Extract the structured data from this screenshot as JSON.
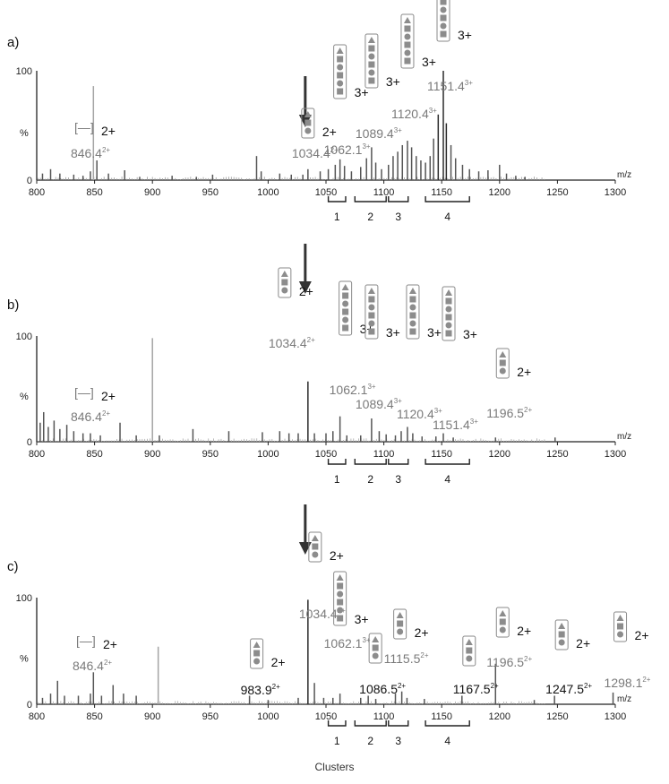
{
  "caption": "Clusters",
  "chart_data": [
    {
      "type": "line",
      "panel": "a)",
      "xlabel": "m/z",
      "ylabel": "%",
      "xlim": [
        800,
        1300
      ],
      "ylim": [
        0,
        100
      ],
      "x_ticks": [
        800,
        850,
        900,
        950,
        1000,
        1050,
        1100,
        1150,
        1200,
        1250,
        1300
      ],
      "y_ticks": [
        0,
        100
      ],
      "peaks": [
        {
          "mz": 805,
          "i": 6
        },
        {
          "mz": 812,
          "i": 10
        },
        {
          "mz": 820,
          "i": 6
        },
        {
          "mz": 832,
          "i": 5
        },
        {
          "mz": 840,
          "i": 4
        },
        {
          "mz": 846.4,
          "i": 8
        },
        {
          "mz": 849,
          "i": 86
        },
        {
          "mz": 852,
          "i": 18
        },
        {
          "mz": 862,
          "i": 6
        },
        {
          "mz": 876,
          "i": 9
        },
        {
          "mz": 889,
          "i": 3
        },
        {
          "mz": 917,
          "i": 4
        },
        {
          "mz": 938,
          "i": 3
        },
        {
          "mz": 952,
          "i": 5
        },
        {
          "mz": 990,
          "i": 22
        },
        {
          "mz": 994,
          "i": 8
        },
        {
          "mz": 1010,
          "i": 6
        },
        {
          "mz": 1020,
          "i": 5
        },
        {
          "mz": 1030,
          "i": 5
        },
        {
          "mz": 1034.4,
          "i": 10
        },
        {
          "mz": 1045,
          "i": 8
        },
        {
          "mz": 1052,
          "i": 10
        },
        {
          "mz": 1058,
          "i": 14
        },
        {
          "mz": 1062.1,
          "i": 19
        },
        {
          "mz": 1066,
          "i": 13
        },
        {
          "mz": 1072,
          "i": 8
        },
        {
          "mz": 1080,
          "i": 12
        },
        {
          "mz": 1085,
          "i": 20
        },
        {
          "mz": 1089.4,
          "i": 30
        },
        {
          "mz": 1093,
          "i": 16
        },
        {
          "mz": 1098,
          "i": 10
        },
        {
          "mz": 1104,
          "i": 14
        },
        {
          "mz": 1108,
          "i": 22
        },
        {
          "mz": 1112,
          "i": 26
        },
        {
          "mz": 1116,
          "i": 32
        },
        {
          "mz": 1120.4,
          "i": 36
        },
        {
          "mz": 1124,
          "i": 30
        },
        {
          "mz": 1128,
          "i": 22
        },
        {
          "mz": 1132,
          "i": 18
        },
        {
          "mz": 1136,
          "i": 16
        },
        {
          "mz": 1140,
          "i": 22
        },
        {
          "mz": 1143,
          "i": 38
        },
        {
          "mz": 1147,
          "i": 60
        },
        {
          "mz": 1151.4,
          "i": 100
        },
        {
          "mz": 1154,
          "i": 52
        },
        {
          "mz": 1158,
          "i": 32
        },
        {
          "mz": 1162,
          "i": 20
        },
        {
          "mz": 1168,
          "i": 14
        },
        {
          "mz": 1174,
          "i": 10
        },
        {
          "mz": 1182,
          "i": 8
        },
        {
          "mz": 1190,
          "i": 9
        },
        {
          "mz": 1200,
          "i": 14
        },
        {
          "mz": 1206,
          "i": 6
        },
        {
          "mz": 1214,
          "i": 4
        },
        {
          "mz": 1222,
          "i": 3
        }
      ],
      "annotations": [
        {
          "label": "846.4",
          "charge": "2+",
          "sup": "2+",
          "mz": 846.4
        },
        {
          "label": "1034.4",
          "charge": "2+",
          "sup": "2+",
          "mz": 1034.4
        },
        {
          "label": "1062.1",
          "charge": "3+",
          "sup": "3+",
          "mz": 1062.1
        },
        {
          "label": "1089.4",
          "charge": "3+",
          "sup": "3+",
          "mz": 1089.4
        },
        {
          "label": "1120.4",
          "charge": "3+",
          "sup": "3+",
          "mz": 1120.4
        },
        {
          "label": "1151.4",
          "charge": "3+",
          "sup": "3+",
          "mz": 1151.4
        }
      ],
      "clusters": [
        {
          "label": "1",
          "range": [
            1052,
            1067
          ]
        },
        {
          "label": "2",
          "range": [
            1075,
            1102
          ]
        },
        {
          "label": "3",
          "range": [
            1104,
            1121
          ]
        },
        {
          "label": "4",
          "range": [
            1136,
            1174
          ]
        }
      ]
    },
    {
      "type": "line",
      "panel": "b)",
      "xlabel": "m/z",
      "ylabel": "%",
      "xlim": [
        800,
        1300
      ],
      "ylim": [
        0,
        100
      ],
      "x_ticks": [
        800,
        850,
        900,
        950,
        1000,
        1050,
        1100,
        1150,
        1200,
        1250,
        1300
      ],
      "y_ticks": [
        0,
        100
      ],
      "peaks": [
        {
          "mz": 803,
          "i": 18
        },
        {
          "mz": 806,
          "i": 28
        },
        {
          "mz": 810,
          "i": 14
        },
        {
          "mz": 815,
          "i": 20
        },
        {
          "mz": 820,
          "i": 12
        },
        {
          "mz": 826,
          "i": 16
        },
        {
          "mz": 832,
          "i": 10
        },
        {
          "mz": 840,
          "i": 8
        },
        {
          "mz": 846.4,
          "i": 8
        },
        {
          "mz": 855,
          "i": 6
        },
        {
          "mz": 872,
          "i": 18
        },
        {
          "mz": 886,
          "i": 6
        },
        {
          "mz": 900,
          "i": 98
        },
        {
          "mz": 906,
          "i": 6
        },
        {
          "mz": 935,
          "i": 12
        },
        {
          "mz": 966,
          "i": 10
        },
        {
          "mz": 995,
          "i": 9
        },
        {
          "mz": 1010,
          "i": 10
        },
        {
          "mz": 1018,
          "i": 8
        },
        {
          "mz": 1026,
          "i": 8
        },
        {
          "mz": 1034.4,
          "i": 57
        },
        {
          "mz": 1040,
          "i": 8
        },
        {
          "mz": 1050,
          "i": 8
        },
        {
          "mz": 1056,
          "i": 10
        },
        {
          "mz": 1062.1,
          "i": 24
        },
        {
          "mz": 1068,
          "i": 6
        },
        {
          "mz": 1080,
          "i": 6
        },
        {
          "mz": 1089.4,
          "i": 22
        },
        {
          "mz": 1096,
          "i": 10
        },
        {
          "mz": 1102,
          "i": 7
        },
        {
          "mz": 1110,
          "i": 6
        },
        {
          "mz": 1115,
          "i": 10
        },
        {
          "mz": 1120.4,
          "i": 14
        },
        {
          "mz": 1125,
          "i": 8
        },
        {
          "mz": 1133,
          "i": 5
        },
        {
          "mz": 1145,
          "i": 5
        },
        {
          "mz": 1151.4,
          "i": 8
        },
        {
          "mz": 1160,
          "i": 4
        },
        {
          "mz": 1196.5,
          "i": 4
        },
        {
          "mz": 1248,
          "i": 4
        }
      ],
      "annotations": [
        {
          "label": "846.4",
          "charge": "2+",
          "sup": "2+",
          "mz": 846.4
        },
        {
          "label": "1034.4",
          "charge": "2+",
          "sup": "2+",
          "mz": 1034.4
        },
        {
          "label": "1062.1",
          "charge": "3+",
          "sup": "3+",
          "mz": 1062.1
        },
        {
          "label": "1089.4",
          "charge": "3+",
          "sup": "3+",
          "mz": 1089.4
        },
        {
          "label": "1120.4",
          "charge": "3+",
          "sup": "3+",
          "mz": 1120.4
        },
        {
          "label": "1151.4",
          "charge": "3+",
          "sup": "3+",
          "mz": 1151.4
        },
        {
          "label": "1196.5",
          "charge": "2+",
          "sup": "2+",
          "mz": 1196.5
        }
      ],
      "clusters": [
        {
          "label": "1",
          "range": [
            1052,
            1067
          ]
        },
        {
          "label": "2",
          "range": [
            1075,
            1102
          ]
        },
        {
          "label": "3",
          "range": [
            1104,
            1121
          ]
        },
        {
          "label": "4",
          "range": [
            1136,
            1174
          ]
        }
      ]
    },
    {
      "type": "line",
      "panel": "c)",
      "xlabel": "m/z",
      "ylabel": "%",
      "xlim": [
        800,
        1300
      ],
      "ylim": [
        0,
        100
      ],
      "x_ticks": [
        800,
        850,
        900,
        950,
        1000,
        1050,
        1100,
        1150,
        1200,
        1250,
        1300
      ],
      "y_ticks": [
        0,
        100
      ],
      "peaks": [
        {
          "mz": 805,
          "i": 6
        },
        {
          "mz": 812,
          "i": 10
        },
        {
          "mz": 818,
          "i": 22
        },
        {
          "mz": 824,
          "i": 8
        },
        {
          "mz": 836,
          "i": 8
        },
        {
          "mz": 846.4,
          "i": 10
        },
        {
          "mz": 849,
          "i": 30
        },
        {
          "mz": 856,
          "i": 8
        },
        {
          "mz": 866,
          "i": 18
        },
        {
          "mz": 875,
          "i": 10
        },
        {
          "mz": 886,
          "i": 8
        },
        {
          "mz": 905,
          "i": 54
        },
        {
          "mz": 983.9,
          "i": 8
        },
        {
          "mz": 1000,
          "i": 4
        },
        {
          "mz": 1026,
          "i": 6
        },
        {
          "mz": 1034.4,
          "i": 98
        },
        {
          "mz": 1040,
          "i": 20
        },
        {
          "mz": 1048,
          "i": 6
        },
        {
          "mz": 1056,
          "i": 6
        },
        {
          "mz": 1062.1,
          "i": 10
        },
        {
          "mz": 1080,
          "i": 6
        },
        {
          "mz": 1086.5,
          "i": 8
        },
        {
          "mz": 1093,
          "i": 5
        },
        {
          "mz": 1110,
          "i": 10
        },
        {
          "mz": 1115.5,
          "i": 12
        },
        {
          "mz": 1120,
          "i": 6
        },
        {
          "mz": 1135,
          "i": 5
        },
        {
          "mz": 1167.5,
          "i": 8
        },
        {
          "mz": 1196.5,
          "i": 38
        },
        {
          "mz": 1230,
          "i": 4
        },
        {
          "mz": 1247.5,
          "i": 8
        },
        {
          "mz": 1298.1,
          "i": 11
        }
      ],
      "annotations": [
        {
          "label": "846.4",
          "charge": "2+",
          "sup": "2+",
          "mz": 846.4
        },
        {
          "label": "983.9",
          "charge": "2+",
          "sup": "2+",
          "mz": 983.9
        },
        {
          "label": "1034.4",
          "charge": "2+",
          "sup": "2+",
          "mz": 1034.4
        },
        {
          "label": "1062.1",
          "charge": "3+",
          "sup": "3+",
          "mz": 1062.1
        },
        {
          "label": "1086.5",
          "charge": "",
          "sup": "2+",
          "mz": 1086.5
        },
        {
          "label": "1115.5",
          "charge": "2+",
          "sup": "2+",
          "mz": 1115.5
        },
        {
          "label": "1167.5",
          "charge": "",
          "sup": "2+",
          "mz": 1167.5
        },
        {
          "label": "1196.5",
          "charge": "2+",
          "sup": "2+",
          "mz": 1196.5
        },
        {
          "label": "1247.5",
          "charge": "2+",
          "sup": "2+",
          "mz": 1247.5
        },
        {
          "label": "1298.1",
          "charge": "2+",
          "sup": "2+",
          "mz": 1298.1
        }
      ],
      "clusters": [
        {
          "label": "1",
          "range": [
            1052,
            1067
          ]
        },
        {
          "label": "2",
          "range": [
            1075,
            1102
          ]
        },
        {
          "label": "3",
          "range": [
            1104,
            1121
          ]
        },
        {
          "label": "4",
          "range": [
            1136,
            1174
          ]
        }
      ]
    }
  ]
}
